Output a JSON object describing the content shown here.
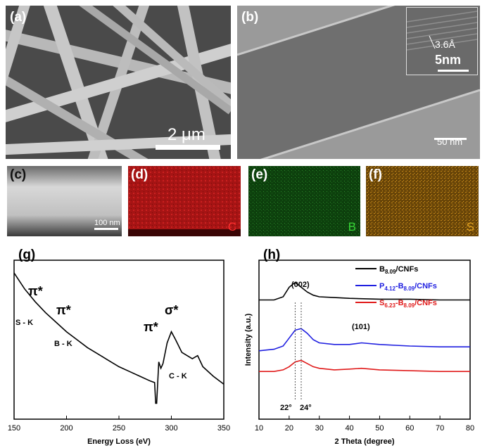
{
  "panels": {
    "a": {
      "label": "(a)",
      "scale_bar": "2 μm"
    },
    "b": {
      "label": "(b)",
      "scale_bar": "50 nm",
      "inset_scale": "5nm",
      "inset_spacing": "3.6Å"
    },
    "c": {
      "label": "(c)",
      "scale_bar": "100 nm"
    },
    "d": {
      "label": "(d)",
      "element": "C",
      "color": "#d21a1a"
    },
    "e": {
      "label": "(e)",
      "element": "B",
      "color": "#1fa51f"
    },
    "f": {
      "label": "(f)",
      "element": "S",
      "color": "#d99a14"
    }
  },
  "chart_data": [
    {
      "type": "line",
      "panel": "(g)",
      "xlabel": "Energy Loss (eV)",
      "ylabel": "",
      "xlim": [
        150,
        350
      ],
      "xticks": [
        150,
        200,
        250,
        300,
        350
      ],
      "annotations": [
        "π*",
        "π*",
        "π*",
        "σ*",
        "S - K",
        "B - K",
        "C - K"
      ],
      "series": [
        {
          "values": [
            [
              150,
              0.92
            ],
            [
              160,
              0.82
            ],
            [
              170,
              0.74
            ],
            [
              180,
              0.67
            ],
            [
              190,
              0.61
            ],
            [
              200,
              0.55
            ],
            [
              210,
              0.5
            ],
            [
              220,
              0.45
            ],
            [
              230,
              0.41
            ],
            [
              240,
              0.37
            ],
            [
              250,
              0.33
            ],
            [
              260,
              0.3
            ],
            [
              270,
              0.27
            ],
            [
              280,
              0.24
            ],
            [
              284,
              0.23
            ],
            [
              285,
              0.1
            ],
            [
              286,
              0.1
            ],
            [
              288,
              0.36
            ],
            [
              290,
              0.32
            ],
            [
              292,
              0.35
            ],
            [
              296,
              0.48
            ],
            [
              300,
              0.55
            ],
            [
              304,
              0.5
            ],
            [
              310,
              0.42
            ],
            [
              320,
              0.38
            ],
            [
              325,
              0.4
            ],
            [
              330,
              0.33
            ],
            [
              340,
              0.27
            ],
            [
              350,
              0.22
            ]
          ]
        }
      ]
    },
    {
      "type": "line",
      "panel": "(h)",
      "xlabel": "2 Theta (degree)",
      "ylabel": "Intensity (a.u.)",
      "xlim": [
        10,
        80
      ],
      "xticks": [
        10,
        20,
        30,
        40,
        50,
        60,
        70,
        80
      ],
      "annotations": [
        "(002)",
        "(101)",
        "22°",
        "24°"
      ],
      "series": [
        {
          "name": "B8.09/CNFs",
          "name_parts": [
            "B",
            "8.09",
            "/CNFs"
          ],
          "color": "#000000",
          "values": [
            [
              10,
              0.75
            ],
            [
              15,
              0.75
            ],
            [
              18,
              0.77
            ],
            [
              20,
              0.83
            ],
            [
              22,
              0.86
            ],
            [
              24,
              0.83
            ],
            [
              26,
              0.8
            ],
            [
              28,
              0.78
            ],
            [
              30,
              0.77
            ],
            [
              35,
              0.765
            ],
            [
              40,
              0.76
            ],
            [
              50,
              0.755
            ],
            [
              60,
              0.755
            ],
            [
              70,
              0.75
            ],
            [
              80,
              0.75
            ]
          ]
        },
        {
          "name": "P4.12-B8.09/CNFs",
          "name_parts": [
            "P",
            "4.12",
            "-B",
            "8.09",
            "/CNFs"
          ],
          "color": "#1f1fe0",
          "values": [
            [
              10,
              0.43
            ],
            [
              15,
              0.44
            ],
            [
              18,
              0.46
            ],
            [
              20,
              0.51
            ],
            [
              22,
              0.56
            ],
            [
              24,
              0.57
            ],
            [
              26,
              0.54
            ],
            [
              28,
              0.5
            ],
            [
              30,
              0.48
            ],
            [
              35,
              0.47
            ],
            [
              40,
              0.47
            ],
            [
              44,
              0.48
            ],
            [
              50,
              0.47
            ],
            [
              60,
              0.46
            ],
            [
              70,
              0.455
            ],
            [
              80,
              0.455
            ]
          ]
        },
        {
          "name": "S6.23-B8.09/CNFs",
          "name_parts": [
            "S",
            "6.23",
            "-B",
            "8.09",
            "/CNFs"
          ],
          "color": "#e01a1a",
          "values": [
            [
              10,
              0.3
            ],
            [
              15,
              0.3
            ],
            [
              18,
              0.31
            ],
            [
              20,
              0.33
            ],
            [
              22,
              0.36
            ],
            [
              24,
              0.37
            ],
            [
              26,
              0.35
            ],
            [
              28,
              0.33
            ],
            [
              30,
              0.32
            ],
            [
              35,
              0.31
            ],
            [
              40,
              0.315
            ],
            [
              44,
              0.32
            ],
            [
              50,
              0.31
            ],
            [
              60,
              0.305
            ],
            [
              70,
              0.3
            ],
            [
              80,
              0.3
            ]
          ]
        }
      ]
    }
  ]
}
